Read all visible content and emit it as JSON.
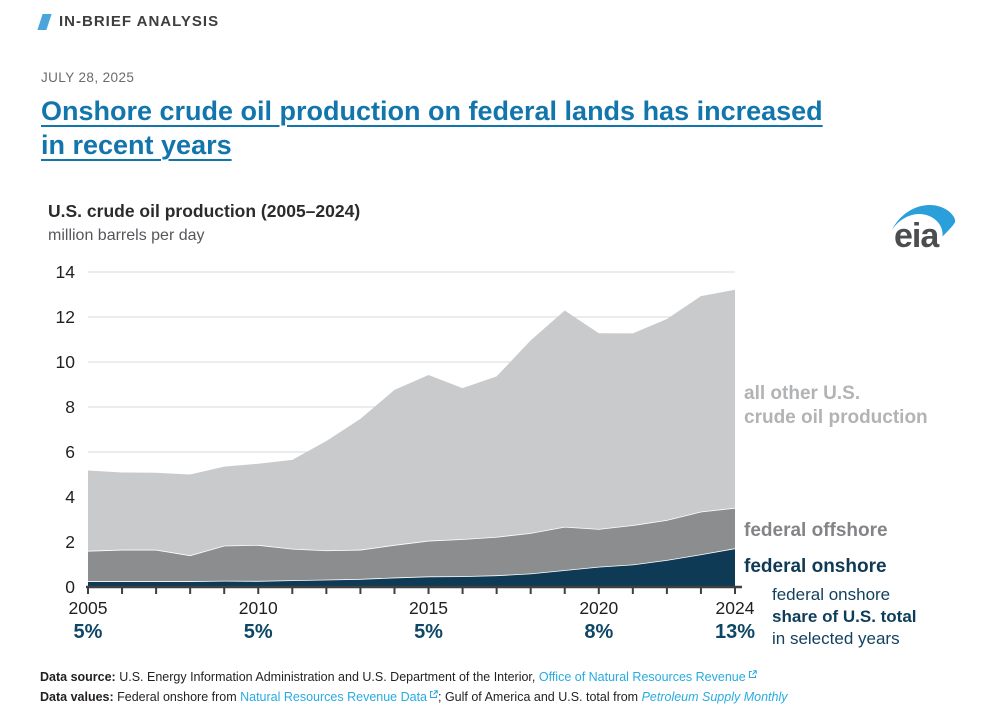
{
  "page": {
    "kicker": "IN-BRIEF ANALYSIS",
    "date": "JULY 28, 2025",
    "title_line1": "Onshore crude oil production on federal lands has increased",
    "title_line2": "in recent years"
  },
  "logo": {
    "text": "eia"
  },
  "chart_data": {
    "type": "area",
    "stacked": true,
    "title": "U.S. crude oil production (2005–2024)",
    "subtitle": "million barrels per day",
    "x": [
      2005,
      2006,
      2007,
      2008,
      2009,
      2010,
      2011,
      2012,
      2013,
      2014,
      2015,
      2016,
      2017,
      2018,
      2019,
      2020,
      2021,
      2022,
      2023,
      2024
    ],
    "series": [
      {
        "name": "federal onshore",
        "color": "#0e3a55",
        "values": [
          0.26,
          0.26,
          0.26,
          0.26,
          0.28,
          0.27,
          0.3,
          0.33,
          0.36,
          0.42,
          0.47,
          0.48,
          0.52,
          0.6,
          0.75,
          0.9,
          1.0,
          1.2,
          1.45,
          1.72
        ]
      },
      {
        "name": "federal offshore",
        "color": "#8b8d8f",
        "values": [
          1.35,
          1.4,
          1.4,
          1.15,
          1.56,
          1.6,
          1.4,
          1.3,
          1.3,
          1.45,
          1.59,
          1.65,
          1.71,
          1.8,
          1.93,
          1.68,
          1.75,
          1.78,
          1.9,
          1.8
        ]
      },
      {
        "name": "all other U.S. crude oil production",
        "color": "#c9cacb",
        "values": [
          3.57,
          3.43,
          3.42,
          3.59,
          3.51,
          3.61,
          3.95,
          4.86,
          5.81,
          6.89,
          7.36,
          6.71,
          7.13,
          8.56,
          9.61,
          8.7,
          8.52,
          8.93,
          9.58,
          9.69
        ]
      }
    ],
    "ylim": [
      0,
      14
    ],
    "ytick_step": 2,
    "grid": true,
    "legend_position": "right",
    "xticks": [
      2005,
      2010,
      2015,
      2020,
      2024
    ],
    "share_labels": [
      {
        "year": 2005,
        "value": "5%"
      },
      {
        "year": 2010,
        "value": "5%"
      },
      {
        "year": 2015,
        "value": "5%"
      },
      {
        "year": 2020,
        "value": "8%"
      },
      {
        "year": 2024,
        "value": "13%"
      }
    ],
    "share_color": "#0e4766",
    "axis_color": "#3f4042",
    "grid_color": "#d8d9da",
    "tick_label_color": "#231f20",
    "boundary_color": "#ffffff"
  },
  "legend": {
    "all_other_line1": "all other U.S.",
    "all_other_line2": "crude oil production",
    "offshore": "federal offshore",
    "onshore": "federal onshore",
    "share_line1": "federal onshore",
    "share_line2": "share of U.S. total",
    "share_line3": "in selected years"
  },
  "footer": {
    "line1_label": "Data source:",
    "line1_text": " U.S. Energy Information Administration and U.S. Department of the Interior, ",
    "line1_link": "Office of Natural Resources Revenue",
    "line2_label": "Data values:",
    "line2_text1": " Federal onshore from ",
    "line2_link1": "Natural Resources Revenue Data",
    "line2_text2": "; Gulf of America and U.S. total from ",
    "line2_link2": "Petroleum Supply Monthly"
  },
  "colors": {
    "accent_slash": "#4aa5dc",
    "title_link": "#1276ad",
    "footer_link": "#29abe2",
    "logo_text": "#4c4d4f",
    "logo_swoosh": "#2b9fd9"
  }
}
